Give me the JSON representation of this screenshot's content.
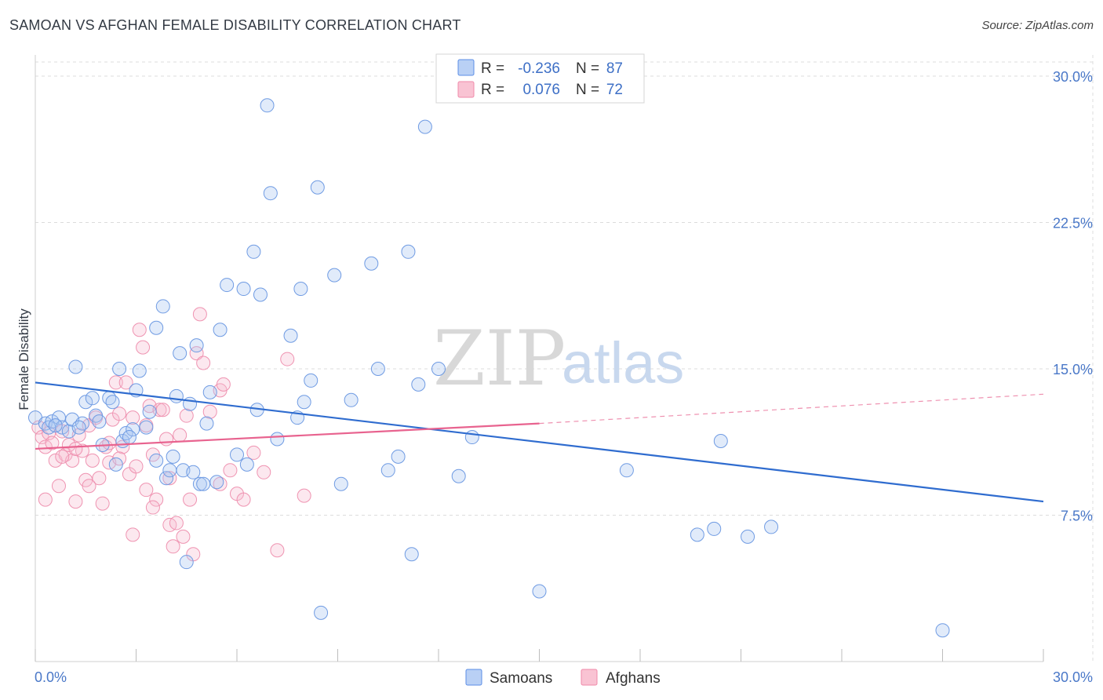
{
  "title": "SAMOAN VS AFGHAN FEMALE DISABILITY CORRELATION CHART",
  "source": "Source: ZipAtlas.com",
  "watermark": {
    "zip": "ZIP",
    "atlas": "atlas"
  },
  "legend": {
    "r_label": "R =",
    "n_label": "N =",
    "samoans": {
      "r": "-0.236",
      "n": "87"
    },
    "afghans": {
      "r": "0.076",
      "n": "72"
    }
  },
  "chart_data": {
    "type": "scatter",
    "title": "SAMOAN VS AFGHAN FEMALE DISABILITY CORRELATION CHART",
    "xlabel": "",
    "ylabel": "Female Disability",
    "xlim": [
      0,
      30
    ],
    "ylim": [
      0,
      30.8
    ],
    "x_ticks": [
      0,
      3,
      6,
      9,
      12,
      15,
      18,
      21,
      24,
      27,
      30
    ],
    "x_tick_labels": [
      "0.0%",
      "30.0%"
    ],
    "y_ticks": [
      7.5,
      15.0,
      22.5,
      30.0
    ],
    "y_tick_labels": [
      "7.5%",
      "15.0%",
      "22.5%",
      "30.0%"
    ],
    "grid": true,
    "legend_position": "top-center",
    "colors": {
      "samoans": "#5b8ee6",
      "samoans_line": "#2f6ccf",
      "afghans": "#f08aaa",
      "afghans_line": "#e8638f",
      "tick": "#4a78c8"
    },
    "series": [
      {
        "name": "Samoans",
        "points": [
          [
            0.0,
            12.5
          ],
          [
            0.3,
            12.2
          ],
          [
            0.4,
            12.0
          ],
          [
            0.5,
            12.3
          ],
          [
            0.7,
            12.5
          ],
          [
            0.8,
            12.0
          ],
          [
            1.0,
            11.8
          ],
          [
            1.1,
            12.4
          ],
          [
            1.2,
            15.1
          ],
          [
            1.4,
            12.2
          ],
          [
            1.5,
            13.3
          ],
          [
            1.7,
            13.5
          ],
          [
            1.8,
            12.6
          ],
          [
            1.9,
            12.3
          ],
          [
            2.0,
            11.1
          ],
          [
            2.2,
            13.5
          ],
          [
            2.3,
            13.3
          ],
          [
            2.4,
            10.1
          ],
          [
            2.5,
            15.0
          ],
          [
            2.6,
            11.3
          ],
          [
            2.7,
            11.7
          ],
          [
            2.9,
            11.9
          ],
          [
            3.0,
            13.9
          ],
          [
            3.1,
            14.9
          ],
          [
            3.4,
            12.8
          ],
          [
            3.6,
            17.1
          ],
          [
            3.6,
            10.3
          ],
          [
            3.8,
            18.2
          ],
          [
            3.9,
            9.4
          ],
          [
            4.0,
            9.8
          ],
          [
            4.1,
            10.5
          ],
          [
            4.2,
            13.6
          ],
          [
            4.3,
            15.8
          ],
          [
            4.4,
            9.8
          ],
          [
            4.5,
            5.1
          ],
          [
            4.6,
            13.2
          ],
          [
            4.8,
            16.2
          ],
          [
            4.9,
            9.1
          ],
          [
            5.0,
            9.1
          ],
          [
            5.1,
            12.2
          ],
          [
            5.2,
            13.8
          ],
          [
            5.5,
            17.0
          ],
          [
            5.7,
            19.3
          ],
          [
            6.0,
            10.6
          ],
          [
            6.2,
            19.1
          ],
          [
            6.3,
            10.1
          ],
          [
            6.5,
            21.0
          ],
          [
            6.6,
            12.9
          ],
          [
            6.7,
            18.8
          ],
          [
            6.9,
            28.5
          ],
          [
            7.0,
            24.0
          ],
          [
            7.2,
            11.4
          ],
          [
            7.6,
            16.7
          ],
          [
            7.8,
            12.5
          ],
          [
            7.9,
            19.1
          ],
          [
            8.0,
            13.3
          ],
          [
            8.2,
            14.4
          ],
          [
            8.4,
            24.3
          ],
          [
            8.5,
            2.5
          ],
          [
            8.9,
            19.8
          ],
          [
            9.1,
            9.1
          ],
          [
            9.4,
            13.4
          ],
          [
            10.0,
            20.4
          ],
          [
            10.2,
            15.0
          ],
          [
            10.5,
            9.8
          ],
          [
            10.8,
            10.5
          ],
          [
            11.1,
            21.0
          ],
          [
            11.2,
            5.5
          ],
          [
            11.4,
            14.2
          ],
          [
            11.6,
            27.4
          ],
          [
            12.0,
            15.0
          ],
          [
            12.6,
            9.5
          ],
          [
            13.0,
            11.5
          ],
          [
            15.0,
            3.6
          ],
          [
            17.6,
            9.8
          ],
          [
            19.7,
            6.5
          ],
          [
            20.2,
            6.8
          ],
          [
            20.4,
            11.3
          ],
          [
            21.2,
            6.4
          ],
          [
            21.9,
            6.9
          ],
          [
            27.0,
            1.6
          ],
          [
            0.6,
            12.1
          ],
          [
            1.3,
            12.0
          ],
          [
            2.8,
            11.5
          ],
          [
            3.3,
            12.0
          ],
          [
            4.7,
            9.7
          ],
          [
            5.4,
            9.2
          ]
        ]
      },
      {
        "name": "Afghans",
        "points": [
          [
            0.1,
            12.0
          ],
          [
            0.2,
            11.5
          ],
          [
            0.3,
            11.0
          ],
          [
            0.4,
            11.7
          ],
          [
            0.5,
            11.2
          ],
          [
            0.6,
            10.3
          ],
          [
            0.7,
            9.0
          ],
          [
            0.8,
            11.8
          ],
          [
            0.9,
            10.6
          ],
          [
            1.0,
            11.1
          ],
          [
            1.1,
            10.3
          ],
          [
            1.2,
            8.2
          ],
          [
            1.3,
            11.6
          ],
          [
            1.4,
            10.8
          ],
          [
            1.5,
            9.3
          ],
          [
            1.6,
            12.1
          ],
          [
            1.7,
            10.3
          ],
          [
            1.8,
            12.5
          ],
          [
            1.9,
            9.4
          ],
          [
            2.0,
            8.1
          ],
          [
            2.1,
            11.0
          ],
          [
            2.2,
            10.2
          ],
          [
            2.3,
            12.4
          ],
          [
            2.4,
            14.3
          ],
          [
            2.5,
            12.7
          ],
          [
            2.6,
            11.0
          ],
          [
            2.7,
            14.3
          ],
          [
            2.8,
            9.6
          ],
          [
            2.9,
            12.5
          ],
          [
            3.0,
            10.0
          ],
          [
            3.1,
            17.0
          ],
          [
            3.2,
            16.1
          ],
          [
            3.3,
            12.1
          ],
          [
            3.4,
            13.1
          ],
          [
            3.5,
            10.6
          ],
          [
            3.6,
            8.3
          ],
          [
            3.7,
            12.9
          ],
          [
            3.8,
            12.9
          ],
          [
            3.9,
            11.4
          ],
          [
            4.0,
            7.0
          ],
          [
            4.1,
            5.9
          ],
          [
            4.2,
            7.1
          ],
          [
            4.3,
            11.6
          ],
          [
            4.4,
            6.4
          ],
          [
            4.5,
            12.6
          ],
          [
            4.6,
            8.3
          ],
          [
            4.7,
            5.5
          ],
          [
            4.8,
            15.8
          ],
          [
            4.9,
            17.8
          ],
          [
            5.0,
            15.3
          ],
          [
            5.2,
            12.8
          ],
          [
            5.5,
            13.9
          ],
          [
            5.6,
            14.2
          ],
          [
            5.8,
            9.8
          ],
          [
            6.0,
            8.6
          ],
          [
            6.2,
            8.3
          ],
          [
            6.5,
            10.7
          ],
          [
            6.8,
            9.7
          ],
          [
            7.2,
            5.7
          ],
          [
            7.5,
            15.5
          ],
          [
            8.0,
            8.5
          ],
          [
            0.3,
            8.3
          ],
          [
            0.8,
            10.5
          ],
          [
            1.6,
            9.0
          ],
          [
            2.2,
            11.2
          ],
          [
            2.9,
            6.5
          ],
          [
            3.5,
            7.9
          ],
          [
            4.0,
            9.4
          ],
          [
            5.5,
            9.1
          ],
          [
            1.2,
            10.9
          ],
          [
            2.5,
            10.4
          ],
          [
            3.3,
            8.8
          ]
        ]
      }
    ],
    "trend_lines": [
      {
        "name": "Samoans",
        "x": [
          0,
          30
        ],
        "y": [
          14.3,
          8.2
        ]
      },
      {
        "name": "Afghans",
        "x": [
          0,
          15
        ],
        "y": [
          10.9,
          12.2
        ]
      },
      {
        "name": "Afghans (extrapolated)",
        "x": [
          15,
          30
        ],
        "y": [
          12.2,
          13.7
        ]
      }
    ]
  }
}
